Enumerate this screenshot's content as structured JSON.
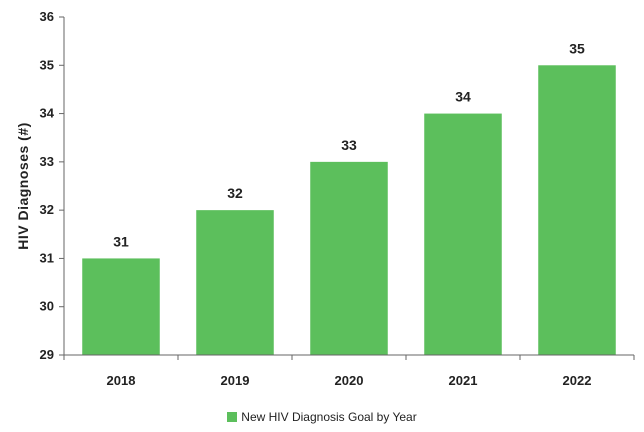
{
  "chart_data": {
    "type": "bar",
    "categories": [
      "2018",
      "2019",
      "2020",
      "2021",
      "2022"
    ],
    "series": [
      {
        "name": "New HIV Diagnosis Goal by Year",
        "values": [
          31,
          32,
          33,
          34,
          35
        ],
        "color": "#5cbf5c"
      }
    ],
    "title": "",
    "xlabel": "",
    "ylabel": "HIV Diagnoses (#)",
    "ylim": [
      29,
      36
    ],
    "yticks": [
      29,
      30,
      31,
      32,
      33,
      34,
      35,
      36
    ],
    "grid": false,
    "legend": "bottom",
    "axis_color": "#666666"
  }
}
